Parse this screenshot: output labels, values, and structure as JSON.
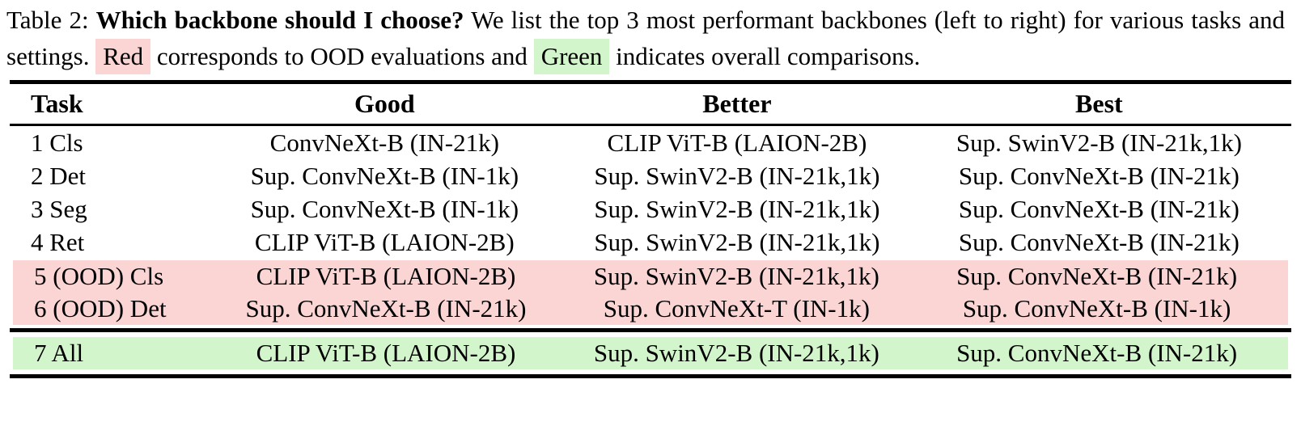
{
  "caption": {
    "label": "Table 2:",
    "title": "Which backbone should I choose?",
    "body_1": "We list the top 3 most performant backbones (left to right) for various tasks and settings.",
    "red_label": "Red",
    "body_2": "corresponds to OOD evaluations and",
    "green_label": "Green",
    "body_3": "indicates overall comparisons."
  },
  "colors": {
    "ood_highlight": "#fbd4d4",
    "overall_highlight": "#d3f5cb"
  },
  "table": {
    "headers": [
      "Task",
      "Good",
      "Better",
      "Best"
    ],
    "rows": [
      {
        "task": "1 Cls",
        "good": "ConvNeXt-B (IN-21k)",
        "better": "CLIP ViT-B (LAION-2B)",
        "best": "Sup. SwinV2-B (IN-21k,1k)",
        "highlight": "none"
      },
      {
        "task": "2 Det",
        "good": "Sup. ConvNeXt-B (IN-1k)",
        "better": "Sup. SwinV2-B (IN-21k,1k)",
        "best": "Sup. ConvNeXt-B (IN-21k)",
        "highlight": "none"
      },
      {
        "task": "3 Seg",
        "good": "Sup. ConvNeXt-B (IN-1k)",
        "better": "Sup. SwinV2-B (IN-21k,1k)",
        "best": "Sup. ConvNeXt-B (IN-21k)",
        "highlight": "none"
      },
      {
        "task": "4 Ret",
        "good": "CLIP ViT-B (LAION-2B)",
        "better": "Sup. SwinV2-B (IN-21k,1k)",
        "best": "Sup. ConvNeXt-B (IN-21k)",
        "highlight": "none"
      },
      {
        "task": "5 (OOD) Cls",
        "good": "CLIP ViT-B (LAION-2B)",
        "better": "Sup. SwinV2-B (IN-21k,1k)",
        "best": "Sup. ConvNeXt-B (IN-21k)",
        "highlight": "red-ood"
      },
      {
        "task": "6 (OOD) Det",
        "good": "Sup. ConvNeXt-B (IN-21k)",
        "better": "Sup. ConvNeXt-T (IN-1k)",
        "best": "Sup. ConvNeXt-B (IN-1k)",
        "highlight": "red-ood"
      },
      {
        "task": "7 All",
        "good": "CLIP ViT-B (LAION-2B)",
        "better": "Sup. SwinV2-B (IN-21k,1k)",
        "best": "Sup. ConvNeXt-B (IN-21k)",
        "highlight": "green-overall"
      }
    ]
  }
}
